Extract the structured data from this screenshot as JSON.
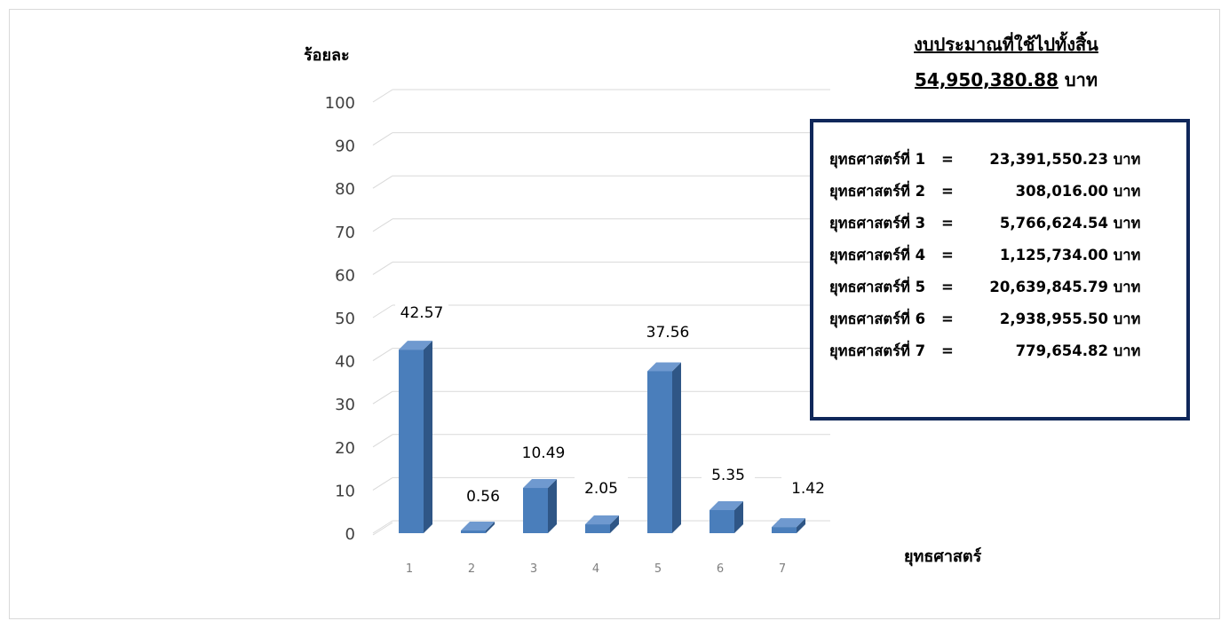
{
  "title": {
    "line1": "งบประมาณที่ใช้ไปทั้งสิ้น",
    "amount": "54,950,380.88",
    "unit": "บาท"
  },
  "chart_data": {
    "type": "bar",
    "categories": [
      "1",
      "2",
      "3",
      "4",
      "5",
      "6",
      "7"
    ],
    "values": [
      42.57,
      0.56,
      10.49,
      2.05,
      37.56,
      5.35,
      1.42
    ],
    "data_labels": [
      "42.57",
      "0.56",
      "10.49",
      "2.05",
      "37.56",
      "5.35",
      "1.42"
    ],
    "ylabel": "ร้อยละ",
    "xlabel": "ยุทธศาสตร์",
    "ylim": [
      0,
      100
    ],
    "yticks": [
      0,
      10,
      20,
      30,
      40,
      50,
      60,
      70,
      80,
      90,
      100
    ],
    "grid": true,
    "style": "3d-column",
    "bar_color": "#4a7ebb"
  },
  "legend": {
    "items": [
      {
        "name": "ยุทธศาสตร์ที่ 1",
        "eq": "=",
        "amount": "23,391,550.23",
        "unit": "บาท"
      },
      {
        "name": "ยุทธศาสตร์ที่ 2",
        "eq": "=",
        "amount": "308,016.00",
        "unit": "บาท"
      },
      {
        "name": "ยุทธศาสตร์ที่ 3",
        "eq": "=",
        "amount": "5,766,624.54",
        "unit": "บาท"
      },
      {
        "name": "ยุทธศาสตร์ที่ 4",
        "eq": "=",
        "amount": "1,125,734.00",
        "unit": "บาท"
      },
      {
        "name": "ยุทธศาสตร์ที่ 5",
        "eq": "=",
        "amount": "20,639,845.79",
        "unit": "บาท"
      },
      {
        "name": "ยุทธศาสตร์ที่ 6",
        "eq": "=",
        "amount": "2,938,955.50",
        "unit": "บาท"
      },
      {
        "name": "ยุทธศาสตร์ที่ 7",
        "eq": "=",
        "amount": "779,654.82",
        "unit": "บาท"
      }
    ]
  }
}
